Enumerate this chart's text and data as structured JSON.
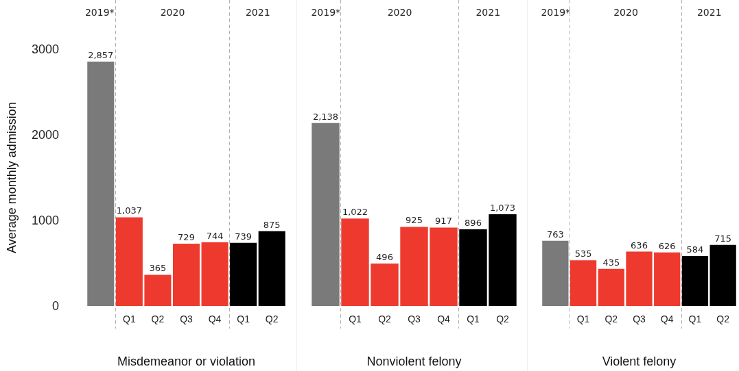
{
  "chart_data": [
    {
      "type": "bar",
      "xlabel": "Misdemeanor or violation",
      "ylabel": "Average monthly admission",
      "categories": [
        null,
        "Q1",
        "Q2",
        "Q3",
        "Q4",
        "Q1",
        "Q2"
      ],
      "values": [
        2857,
        1037,
        365,
        729,
        744,
        739,
        875
      ],
      "colors": [
        "#7a7a7a",
        "#ee3a2e",
        "#ee3a2e",
        "#ee3a2e",
        "#ee3a2e",
        "#000000",
        "#000000"
      ],
      "value_labels": [
        "2,857",
        "1,037",
        "365",
        "729",
        "744",
        "739",
        "875"
      ],
      "ylim": [
        0,
        3000
      ],
      "yticks": [
        0,
        1000,
        2000,
        3000
      ],
      "grid": false,
      "annotations": [
        "2019*",
        "2020",
        "2021"
      ]
    },
    {
      "type": "bar",
      "xlabel": "Nonviolent felony",
      "categories": [
        null,
        "Q1",
        "Q2",
        "Q3",
        "Q4",
        "Q1",
        "Q2"
      ],
      "values": [
        2138,
        1022,
        496,
        925,
        917,
        896,
        1073
      ],
      "colors": [
        "#7a7a7a",
        "#ee3a2e",
        "#ee3a2e",
        "#ee3a2e",
        "#ee3a2e",
        "#000000",
        "#000000"
      ],
      "value_labels": [
        "2,138",
        "1,022",
        "496",
        "925",
        "917",
        "896",
        "1,073"
      ],
      "ylim": [
        0,
        3000
      ],
      "tick_labels": "x",
      "grid": false,
      "annotations": [
        "2019*",
        "2020",
        "2021"
      ]
    },
    {
      "type": "bar",
      "xlabel": "Violent felony",
      "categories": [
        null,
        "Q1",
        "Q2",
        "Q3",
        "Q4",
        "Q1",
        "Q2"
      ],
      "values": [
        763,
        535,
        435,
        636,
        626,
        584,
        715
      ],
      "colors": [
        "#7a7a7a",
        "#ee3a2e",
        "#ee3a2e",
        "#ee3a2e",
        "#ee3a2e",
        "#000000",
        "#000000"
      ],
      "value_labels": [
        "763",
        "535",
        "435",
        "636",
        "626",
        "584",
        "715"
      ],
      "ylim": [
        0,
        3000
      ],
      "tick_labels": "x",
      "grid": false,
      "annotations": [
        "2019*",
        "2020",
        "2021"
      ]
    }
  ]
}
